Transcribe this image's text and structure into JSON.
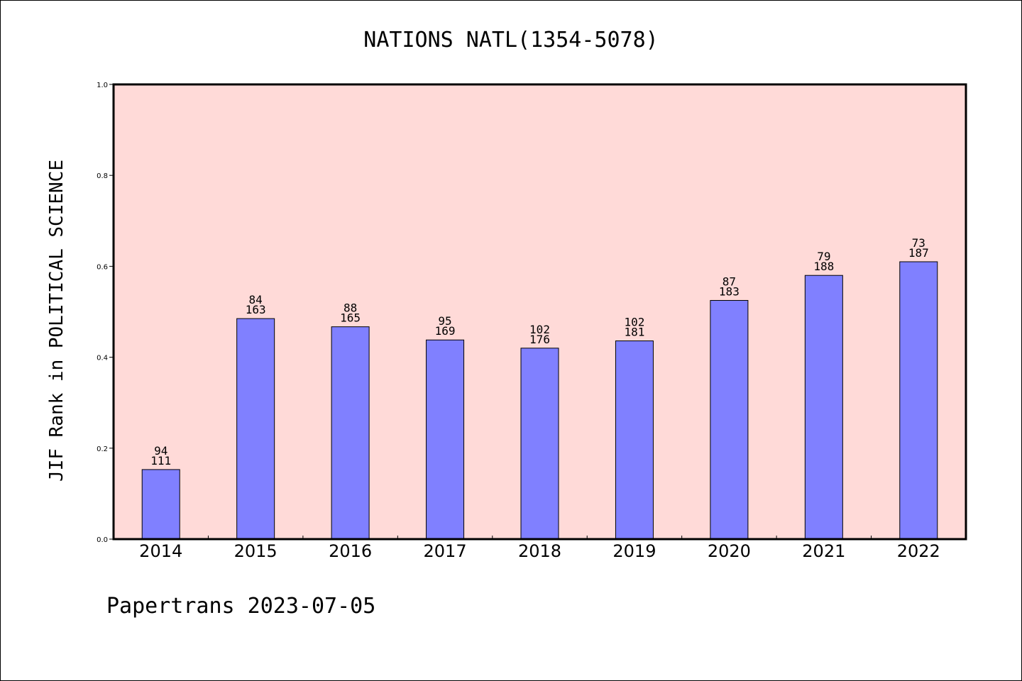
{
  "chart_data": {
    "type": "bar",
    "title": "NATIONS NATL(1354-5078)",
    "ylabel": "JIF Rank in POLITICAL SCIENCE",
    "xlabel": "",
    "footer": "Papertrans 2023-07-05",
    "ylim": [
      0,
      1.0
    ],
    "yticks": [
      "0.0",
      "0.2",
      "0.4",
      "0.6",
      "0.8",
      "1.0"
    ],
    "grid": false,
    "categories": [
      "2014",
      "2015",
      "2016",
      "2017",
      "2018",
      "2019",
      "2020",
      "2021",
      "2022"
    ],
    "values": [
      0.153,
      0.485,
      0.467,
      0.438,
      0.42,
      0.436,
      0.525,
      0.58,
      0.61
    ],
    "rank_labels": [
      "94",
      "84",
      "88",
      "95",
      "102",
      "102",
      "87",
      "79",
      "73"
    ],
    "total_labels": [
      "111",
      "163",
      "165",
      "169",
      "176",
      "181",
      "183",
      "188",
      "187"
    ],
    "colors": {
      "plot_bg": "#FFDAD8",
      "bar": "#8080FF",
      "bar_edge": "#000000"
    }
  }
}
